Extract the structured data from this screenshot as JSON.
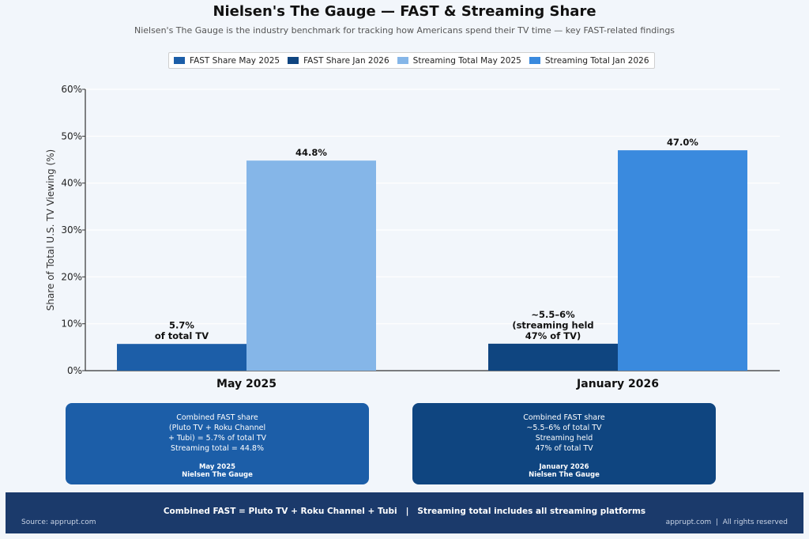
{
  "header": {
    "title": "Nielsen's The Gauge — FAST & Streaming Share",
    "subtitle": "Nielsen's The Gauge is the industry benchmark for tracking how Americans spend their TV time — key FAST-related findings"
  },
  "chart_data": {
    "type": "bar",
    "categories": [
      "May 2025",
      "January 2026"
    ],
    "ylabel": "Share of Total U.S. TV Viewing (%)",
    "ylim": [
      0,
      60
    ],
    "yticks": [
      "0%",
      "10%",
      "20%",
      "30%",
      "40%",
      "50%",
      "60%"
    ],
    "grid": true,
    "legend_placement": "top-center",
    "legend": [
      {
        "name": "FAST Share May 2025",
        "color": "#1c5ea8"
      },
      {
        "name": "FAST Share Jan 2026",
        "color": "#0f4580"
      },
      {
        "name": "Streaming Total May 2025",
        "color": "#85b6e8"
      },
      {
        "name": "Streaming Total Jan 2026",
        "color": "#3a8ade"
      }
    ],
    "bars": [
      {
        "category": "May 2025",
        "kind": "fast",
        "value": 5.7,
        "color": "#1c5ea8",
        "label": [
          "5.7%",
          "of total TV"
        ]
      },
      {
        "category": "May 2025",
        "kind": "streaming",
        "value": 44.8,
        "color": "#85b6e8",
        "label": [
          "44.8%"
        ]
      },
      {
        "category": "January 2026",
        "kind": "fast",
        "value": 5.75,
        "color": "#0f4580",
        "label": [
          "~5.5–6%",
          "(streaming held",
          "47% of TV)"
        ]
      },
      {
        "category": "January 2026",
        "kind": "streaming",
        "value": 47.0,
        "color": "#3a8ade",
        "label": [
          "47.0%"
        ]
      }
    ]
  },
  "cards": [
    {
      "body": "Combined FAST share\n(Pluto TV + Roku Channel\n+ Tubi) = 5.7% of total TV\nStreaming total = 44.8%",
      "sig1": "May 2025",
      "sig2": "Nielsen The Gauge",
      "color": "#1c5ea8"
    },
    {
      "body": "Combined FAST share\n~5.5–6% of total TV\nStreaming held\n47% of total TV",
      "sig1": "January 2026",
      "sig2": "Nielsen The Gauge",
      "color": "#0f4580"
    }
  ],
  "footer": {
    "main": "Combined FAST = Pluto TV + Roku Channel + Tubi   |   Streaming total includes all streaming platforms",
    "source": "Source: apprupt.com",
    "rights": "apprupt.com  |  All rights reserved"
  }
}
